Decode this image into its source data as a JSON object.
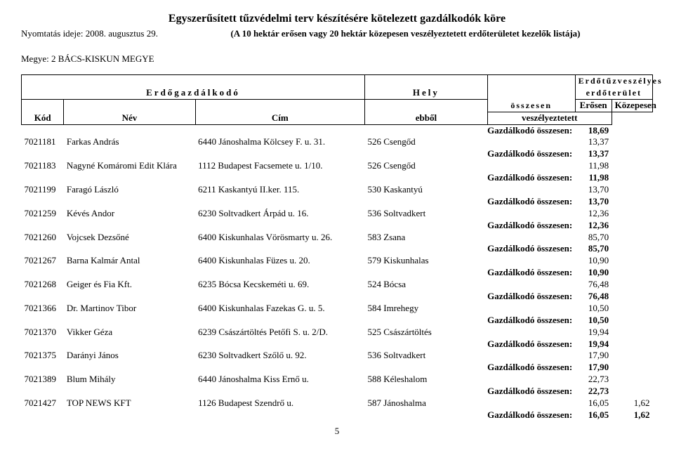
{
  "header": {
    "title": "Egyszerűsített tűzvédelmi terv készítésére kötelezett gazdálkodók köre",
    "print_date": "Nyomtatás ideje: 2008. augusztus 29.",
    "subtitle": "(A 10 hektár erősen vagy 20 hektár közepesen veszélyeztetett erdőterületet kezelők listája)",
    "megye": "Megye: 2 BÁCS-KISKUN MEGYE",
    "page": "5"
  },
  "th": {
    "erdogazd": "Erdőgazdálkodó",
    "hely": "Hely",
    "erdotuz": "Erdőtűzveszélyes",
    "erdoterulet": "erdőterület",
    "osszesen": "összesen",
    "kod": "Kód",
    "nev": "Név",
    "cim": "Cím",
    "ebbol": "ebből",
    "erosen": "Erősen",
    "kozepesen": "Közepesen",
    "veszelyez": "veszélyeztetett",
    "sum_label": "Gazdálkodó összesen:"
  },
  "rows": [
    {
      "type": "sum",
      "e": "18,69",
      "k": ""
    },
    {
      "type": "d",
      "kod": "7021181",
      "nev": "Farkas András",
      "cim": "6440 Jánoshalma Kölcsey F. u. 31.",
      "hely": "526 Csengőd",
      "e": "13,37",
      "k": ""
    },
    {
      "type": "sum",
      "e": "13,37",
      "k": ""
    },
    {
      "type": "d",
      "kod": "7021183",
      "nev": "Nagyné Komáromi Edit Klára",
      "cim": "1112 Budapest Facsemete u. 1/10.",
      "hely": "526 Csengőd",
      "e": "11,98",
      "k": ""
    },
    {
      "type": "sum",
      "e": "11,98",
      "k": ""
    },
    {
      "type": "d",
      "kod": "7021199",
      "nev": "Faragó László",
      "cim": "6211 Kaskantyú II.ker. 115.",
      "hely": "530 Kaskantyú",
      "e": "13,70",
      "k": ""
    },
    {
      "type": "sum",
      "e": "13,70",
      "k": ""
    },
    {
      "type": "d",
      "kod": "7021259",
      "nev": "Kévés Andor",
      "cim": "6230 Soltvadkert Árpád u. 16.",
      "hely": "536 Soltvadkert",
      "e": "12,36",
      "k": ""
    },
    {
      "type": "sum",
      "e": "12,36",
      "k": ""
    },
    {
      "type": "d",
      "kod": "7021260",
      "nev": "Vojcsek Dezsőné",
      "cim": "6400 Kiskunhalas Vörösmarty u. 26.",
      "hely": "583 Zsana",
      "e": "85,70",
      "k": ""
    },
    {
      "type": "sum",
      "e": "85,70",
      "k": ""
    },
    {
      "type": "d",
      "kod": "7021267",
      "nev": "Barna Kalmár Antal",
      "cim": "6400 Kiskunhalas Füzes u. 20.",
      "hely": "579 Kiskunhalas",
      "e": "10,90",
      "k": ""
    },
    {
      "type": "sum",
      "e": "10,90",
      "k": ""
    },
    {
      "type": "d",
      "kod": "7021268",
      "nev": "Geiger és Fia Kft.",
      "cim": "6235 Bócsa Kecskeméti u. 69.",
      "hely": "524 Bócsa",
      "e": "76,48",
      "k": ""
    },
    {
      "type": "sum",
      "e": "76,48",
      "k": ""
    },
    {
      "type": "d",
      "kod": "7021366",
      "nev": "Dr. Martinov Tibor",
      "cim": "6400 Kiskunhalas Fazekas G. u. 5.",
      "hely": "584 Imrehegy",
      "e": "10,50",
      "k": ""
    },
    {
      "type": "sum",
      "e": "10,50",
      "k": ""
    },
    {
      "type": "d",
      "kod": "7021370",
      "nev": "Vikker Géza",
      "cim": "6239 Császártöltés Petőfi S. u. 2/D.",
      "hely": "525 Császártöltés",
      "e": "19,94",
      "k": ""
    },
    {
      "type": "sum",
      "e": "19,94",
      "k": ""
    },
    {
      "type": "d",
      "kod": "7021375",
      "nev": "Darányi János",
      "cim": "6230 Soltvadkert Szőlő u. 92.",
      "hely": "536 Soltvadkert",
      "e": "17,90",
      "k": ""
    },
    {
      "type": "sum",
      "e": "17,90",
      "k": ""
    },
    {
      "type": "d",
      "kod": "7021389",
      "nev": "Blum Mihály",
      "cim": "6440 Jánoshalma Kiss Ernő u.",
      "hely": "588 Kéleshalom",
      "e": "22,73",
      "k": ""
    },
    {
      "type": "sum",
      "e": "22,73",
      "k": ""
    },
    {
      "type": "d",
      "kod": "7021427",
      "nev": "TOP NEWS KFT",
      "cim": "1126 Budapest Szendrő u.",
      "hely": "587 Jánoshalma",
      "e": "16,05",
      "k": "1,62"
    },
    {
      "type": "sum",
      "e": "16,05",
      "k": "1,62"
    }
  ]
}
